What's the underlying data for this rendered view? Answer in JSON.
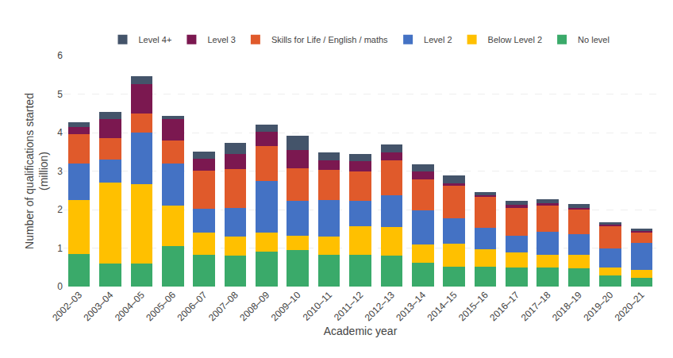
{
  "chart_data": {
    "type": "bar",
    "stacked": true,
    "categories": [
      "2002–03",
      "2003–04",
      "2004–05",
      "2005–06",
      "2006–07",
      "2007–08",
      "2008–09",
      "2009–10",
      "2010–11",
      "2011–12",
      "2012–13",
      "2013–14",
      "2014–15",
      "2015–16",
      "2016–17",
      "2017–18",
      "2018–19",
      "2019–20",
      "2020–21"
    ],
    "series": [
      {
        "name": "No level",
        "color": "#3aaa6a",
        "values": [
          0.85,
          0.6,
          0.6,
          1.05,
          0.82,
          0.8,
          0.9,
          0.95,
          0.82,
          0.82,
          0.8,
          0.62,
          0.52,
          0.52,
          0.5,
          0.5,
          0.47,
          0.28,
          0.23
        ]
      },
      {
        "name": "Below Level 2",
        "color": "#ffc000",
        "values": [
          1.4,
          2.1,
          2.05,
          1.05,
          0.58,
          0.5,
          0.5,
          0.38,
          0.48,
          0.75,
          0.75,
          0.48,
          0.6,
          0.45,
          0.38,
          0.33,
          0.35,
          0.22,
          0.2
        ]
      },
      {
        "name": "Level 2",
        "color": "#4472c4",
        "values": [
          0.95,
          0.6,
          1.35,
          1.1,
          0.62,
          0.75,
          1.35,
          0.9,
          0.95,
          0.65,
          0.82,
          0.88,
          0.65,
          0.55,
          0.45,
          0.6,
          0.55,
          0.5,
          0.7
        ]
      },
      {
        "name": "Skills for Life / English / maths",
        "color": "#e05a2b",
        "values": [
          0.75,
          0.55,
          0.5,
          0.6,
          1.0,
          1.0,
          0.9,
          0.85,
          0.78,
          0.78,
          0.9,
          0.8,
          0.85,
          0.8,
          0.72,
          0.68,
          0.62,
          0.58,
          0.28
        ]
      },
      {
        "name": "Level 3",
        "color": "#7b1850",
        "values": [
          0.2,
          0.5,
          0.75,
          0.55,
          0.3,
          0.4,
          0.38,
          0.46,
          0.25,
          0.25,
          0.22,
          0.2,
          0.07,
          0.05,
          0.07,
          0.05,
          0.05,
          0.04,
          0.03
        ]
      },
      {
        "name": "Level 4+",
        "color": "#44546a",
        "values": [
          0.12,
          0.18,
          0.22,
          0.08,
          0.18,
          0.28,
          0.18,
          0.38,
          0.2,
          0.2,
          0.2,
          0.2,
          0.2,
          0.08,
          0.1,
          0.1,
          0.1,
          0.04,
          0.06
        ]
      }
    ],
    "xlabel": "Academic year",
    "ylabel": "Number of qualifications started\n(million)",
    "ylim": [
      0,
      6
    ],
    "yticks": [
      0,
      1,
      2,
      3,
      4,
      5,
      6
    ],
    "grid": true,
    "legend": "top"
  }
}
